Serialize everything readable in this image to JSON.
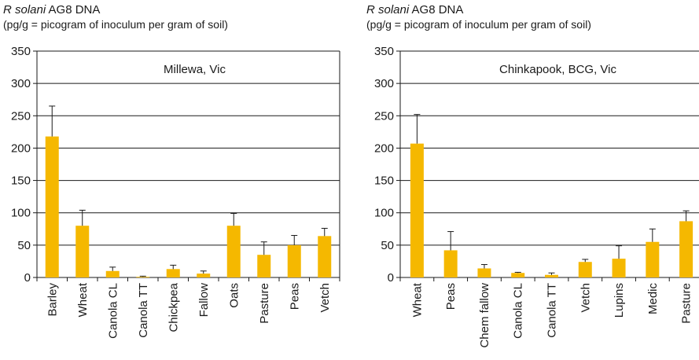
{
  "chart_data": [
    {
      "type": "bar",
      "title_species": "R solani",
      "title_rest": " AG8 DNA",
      "subtitle": "(pg/g = picogram of inoculum per gram of soil)",
      "site": "Millewa, Vic",
      "ylim": [
        0,
        350
      ],
      "yticks": [
        0,
        50,
        100,
        150,
        200,
        250,
        300,
        350
      ],
      "grid": true,
      "bar_color": "#f5b800",
      "categories": [
        "Barley",
        "Wheat",
        "Canola CL",
        "Canola TT",
        "Chickpea",
        "Fallow",
        "Oats",
        "Pasture",
        "Peas",
        "Vetch"
      ],
      "values": [
        218,
        80,
        10,
        1,
        13,
        6,
        80,
        35,
        50,
        64
      ],
      "error_upper": [
        265,
        104,
        16,
        2,
        19,
        10,
        99,
        55,
        65,
        76
      ]
    },
    {
      "type": "bar",
      "title_species": "R solani",
      "title_rest": " AG8 DNA",
      "subtitle": "(pg/g = picogram of inoculum per gram of soil)",
      "site": "Chinkapook, BCG, Vic",
      "ylim": [
        0,
        350
      ],
      "yticks": [
        0,
        50,
        100,
        150,
        200,
        250,
        300,
        350
      ],
      "grid": true,
      "bar_color": "#f5b800",
      "categories": [
        "Wheat",
        "Peas",
        "Chem fallow",
        "Canola CL",
        "Canola TT",
        "Vetch",
        "Lupins",
        "Medic",
        "Pasture"
      ],
      "values": [
        207,
        42,
        14,
        7,
        4,
        24,
        29,
        55,
        87
      ],
      "error_upper": [
        252,
        71,
        20,
        8,
        7,
        28,
        49,
        75,
        103
      ]
    }
  ]
}
